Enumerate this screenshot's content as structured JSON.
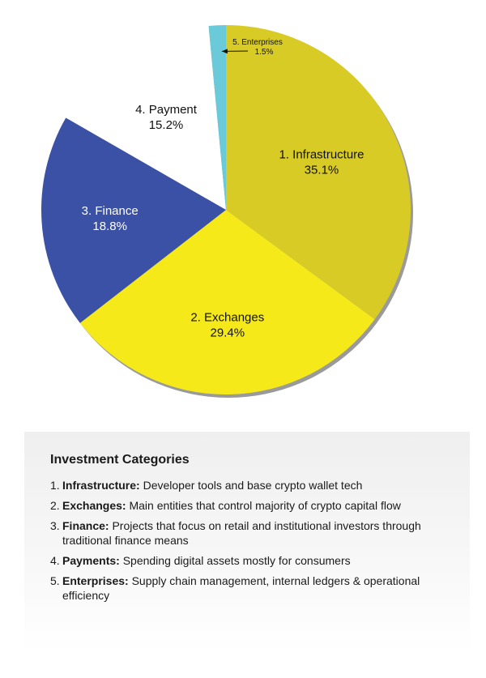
{
  "chart_data": {
    "type": "pie",
    "slices": [
      {
        "label": "1. Infrastructure",
        "value": 35.1,
        "display": "35.1%",
        "color": "#d8cb25",
        "text_color": "#111111"
      },
      {
        "label": "2. Exchanges",
        "value": 29.4,
        "display": "29.4%",
        "color": "#f5e91a",
        "text_color": "#111111"
      },
      {
        "label": "3. Finance",
        "value": 18.8,
        "display": "18.8%",
        "color": "#3a51a6",
        "text_color": "#ffffff"
      },
      {
        "label": "4. Payment",
        "value": 15.2,
        "display": "15.2%",
        "color": "#ffffff",
        "text_color": "#111111"
      },
      {
        "label": "5. Enterprises",
        "value": 1.5,
        "display": "1.5%",
        "color": "#6bcad9",
        "text_color": "#111111"
      }
    ],
    "start_angle_deg": 0,
    "direction": "clockwise"
  },
  "legend": {
    "title": "Investment Categories",
    "items": [
      {
        "num": "1.",
        "term": "Infrastructure:",
        "desc": "Developer tools and base crypto wallet tech"
      },
      {
        "num": "2.",
        "term": "Exchanges:",
        "desc": "Main entities that control majority of crypto capital flow"
      },
      {
        "num": "3.",
        "term": "Finance:",
        "desc": "Projects that focus on retail and institutional investors through traditional finance means"
      },
      {
        "num": "4.",
        "term": "Payments:",
        "desc": "Spending digital assets mostly for consumers"
      },
      {
        "num": "5.",
        "term": "Enterprises:",
        "desc": "Supply chain management, internal ledgers & operational efficiency"
      }
    ]
  }
}
